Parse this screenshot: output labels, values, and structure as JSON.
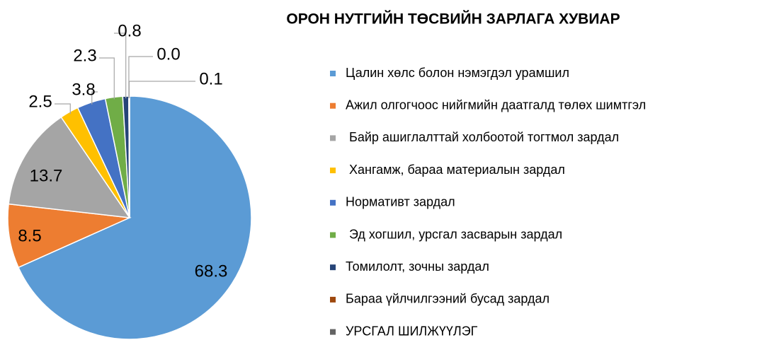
{
  "chart_data": {
    "type": "pie",
    "title": "ОРОН НУТГИЙН ТӨСВИЙН ЗАРЛАГА ХУВИАР",
    "categories": [
      "Цалин хөлс болон нэмэгдэл урамшил",
      "Ажил олгогчоос нийгмийн даатгалд төлөх шимтгэл",
      " Байр ашиглалттай холбоотой тогтмол зардал",
      " Хангамж, бараа материалын зардал",
      "Нормативт зардал",
      " Эд хогшил, урсгал засварын зардал",
      "Томилолт, зочны зардал",
      "Бараа үйлчилгээний бусад зардал",
      "УРСГАЛ ШИЛЖҮҮЛЭГ"
    ],
    "values": [
      68.3,
      8.5,
      13.7,
      2.5,
      3.8,
      2.3,
      0.8,
      0.0,
      0.1
    ],
    "value_labels": [
      "68.3",
      "8.5",
      "13.7",
      "2.5",
      "3.8",
      "2.3",
      "0.8",
      "0.0",
      "0.1"
    ],
    "colors": [
      "#5b9bd5",
      "#ed7d31",
      "#a5a5a5",
      "#ffc000",
      "#4472c4",
      "#70ad47",
      "#264478",
      "#9e480e",
      "#636363"
    ],
    "legend": "right"
  }
}
